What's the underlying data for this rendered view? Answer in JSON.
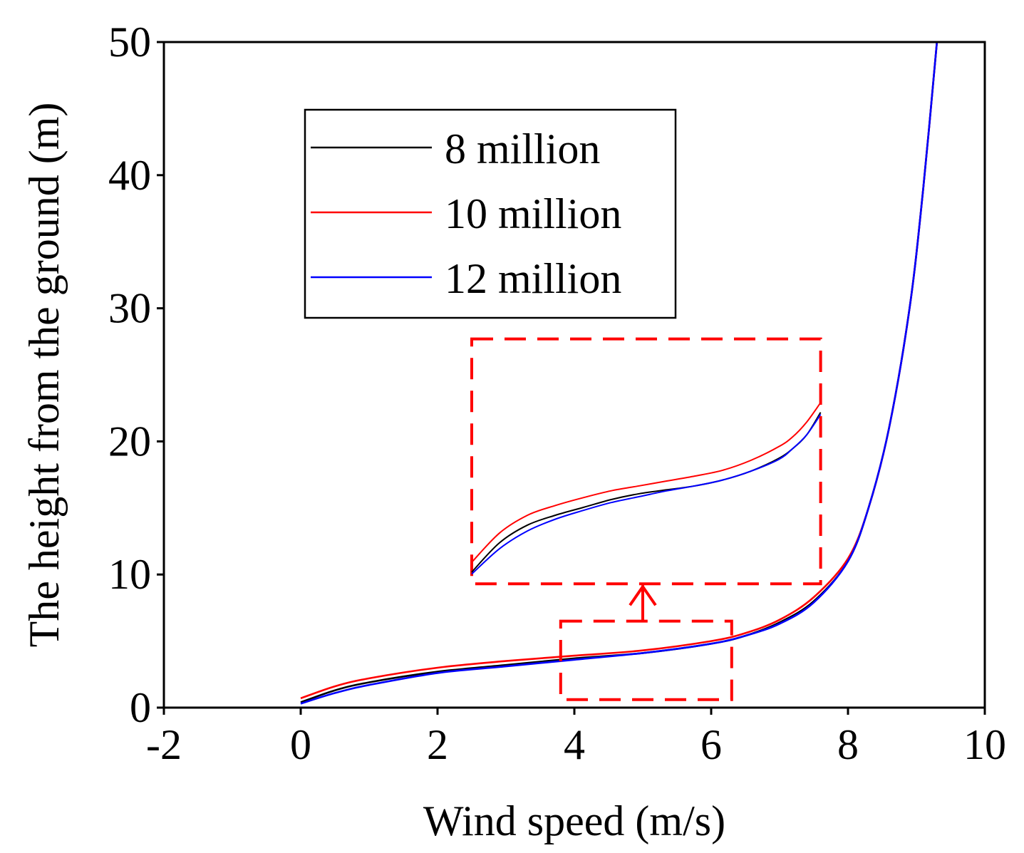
{
  "chart_data": {
    "type": "line",
    "title": "",
    "xlabel": "Wind speed  (m/s)",
    "ylabel": "The height from the ground (m)",
    "xlim": [
      -2,
      10
    ],
    "ylim": [
      0,
      50
    ],
    "xticks": [
      "-2",
      "0",
      "2",
      "4",
      "6",
      "8",
      "10"
    ],
    "yticks": [
      "0",
      "10",
      "20",
      "30",
      "40",
      "50"
    ],
    "legend_position": "top-left",
    "series": [
      {
        "name": "8 million",
        "color": "#000000",
        "x": [
          0.0,
          0.5,
          1.0,
          2.0,
          3.0,
          4.0,
          5.0,
          6.0,
          6.5,
          7.0,
          7.5,
          8.0,
          8.3,
          8.6,
          8.9,
          9.1,
          9.3
        ],
        "y": [
          0.4,
          1.3,
          1.9,
          2.7,
          3.2,
          3.7,
          4.1,
          4.8,
          5.4,
          6.4,
          8.0,
          11.0,
          15.0,
          21.0,
          30.0,
          39.0,
          50.0
        ]
      },
      {
        "name": "10 million",
        "color": "#ff0000",
        "x": [
          0.0,
          0.5,
          1.0,
          2.0,
          3.0,
          4.0,
          5.0,
          6.0,
          6.5,
          7.0,
          7.5,
          8.0,
          8.3,
          8.6,
          8.9,
          9.1,
          9.3
        ],
        "y": [
          0.7,
          1.6,
          2.2,
          3.0,
          3.5,
          3.9,
          4.3,
          5.0,
          5.6,
          6.6,
          8.3,
          11.2,
          15.0,
          21.0,
          30.0,
          39.0,
          50.0
        ]
      },
      {
        "name": "12 million",
        "color": "#0000ff",
        "x": [
          0.0,
          0.5,
          1.0,
          2.0,
          3.0,
          4.0,
          5.0,
          6.0,
          6.5,
          7.0,
          7.5,
          8.0,
          8.3,
          8.6,
          8.9,
          9.1,
          9.3
        ],
        "y": [
          0.3,
          1.1,
          1.7,
          2.6,
          3.1,
          3.6,
          4.1,
          4.8,
          5.4,
          6.3,
          7.9,
          11.0,
          15.0,
          21.0,
          30.0,
          39.0,
          50.0
        ]
      }
    ],
    "annotations": {
      "zoom_region": {
        "x_range": [
          3.8,
          6.3
        ],
        "y_range": [
          0.6,
          6.5
        ]
      },
      "arrow": {
        "from": [
          5.0,
          6.5
        ],
        "to": [
          5.0,
          9.3
        ]
      },
      "inset": {
        "x_range": [
          2.5,
          7.6
        ],
        "y_range": [
          9.3,
          27.7
        ],
        "source_x_range": [
          3.8,
          6.3
        ],
        "source_y_range": [
          3.3,
          5.8
        ],
        "series": [
          {
            "name": "8 million",
            "color": "#000000",
            "x": [
              3.8,
              4.0,
              4.2,
              4.4,
              4.6,
              4.8,
              5.0,
              5.2,
              5.4,
              5.6,
              5.8,
              6.0,
              6.1,
              6.2,
              6.3
            ],
            "y": [
              3.42,
              3.72,
              3.9,
              4.0,
              4.08,
              4.16,
              4.22,
              4.26,
              4.3,
              4.36,
              4.45,
              4.58,
              4.68,
              4.82,
              5.05
            ]
          },
          {
            "name": "10 million",
            "color": "#ff0000",
            "x": [
              3.8,
              4.0,
              4.2,
              4.4,
              4.6,
              4.8,
              5.0,
              5.2,
              5.4,
              5.6,
              5.8,
              6.0,
              6.1,
              6.2,
              6.3
            ],
            "y": [
              3.52,
              3.82,
              4.0,
              4.1,
              4.18,
              4.25,
              4.3,
              4.35,
              4.4,
              4.46,
              4.56,
              4.7,
              4.8,
              4.95,
              5.15
            ]
          },
          {
            "name": "12 million",
            "color": "#0000ff",
            "x": [
              3.8,
              4.0,
              4.2,
              4.4,
              4.6,
              4.8,
              5.0,
              5.2,
              5.4,
              5.6,
              5.8,
              6.0,
              6.1,
              6.2,
              6.3
            ],
            "y": [
              3.4,
              3.66,
              3.84,
              3.96,
              4.05,
              4.13,
              4.19,
              4.25,
              4.3,
              4.36,
              4.45,
              4.57,
              4.68,
              4.82,
              5.03
            ]
          }
        ]
      }
    }
  }
}
